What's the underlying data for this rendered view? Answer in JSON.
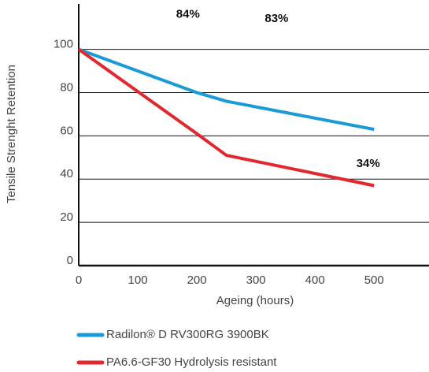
{
  "chart_data": {
    "type": "line",
    "x_label": "Ageing (hours)",
    "y_label": "Tensile Strenght Retention",
    "x": [
      0,
      200,
      250,
      500
    ],
    "series": [
      {
        "name": "Radilon® D RV300RG 3900BK",
        "color": "#1a9bd7",
        "values": [
          100,
          80,
          76,
          63
        ]
      },
      {
        "name": "PA6.6-GF30 Hydrolysis resistant",
        "color": "#e0282e",
        "values": [
          100,
          61,
          51,
          37
        ]
      }
    ],
    "xlim": [
      0,
      593
    ],
    "xticks": [
      0,
      100,
      200,
      300,
      400,
      500
    ],
    "ylim": [
      0,
      121
    ],
    "yticks": [
      0,
      20,
      40,
      60,
      80,
      100
    ],
    "grid": true,
    "annotations": [
      {
        "text": "84%",
        "x": 185,
        "y": 116
      },
      {
        "text": "83%",
        "x": 335,
        "y": 114
      },
      {
        "text": "34%",
        "x": 490,
        "y": 47
      }
    ]
  }
}
